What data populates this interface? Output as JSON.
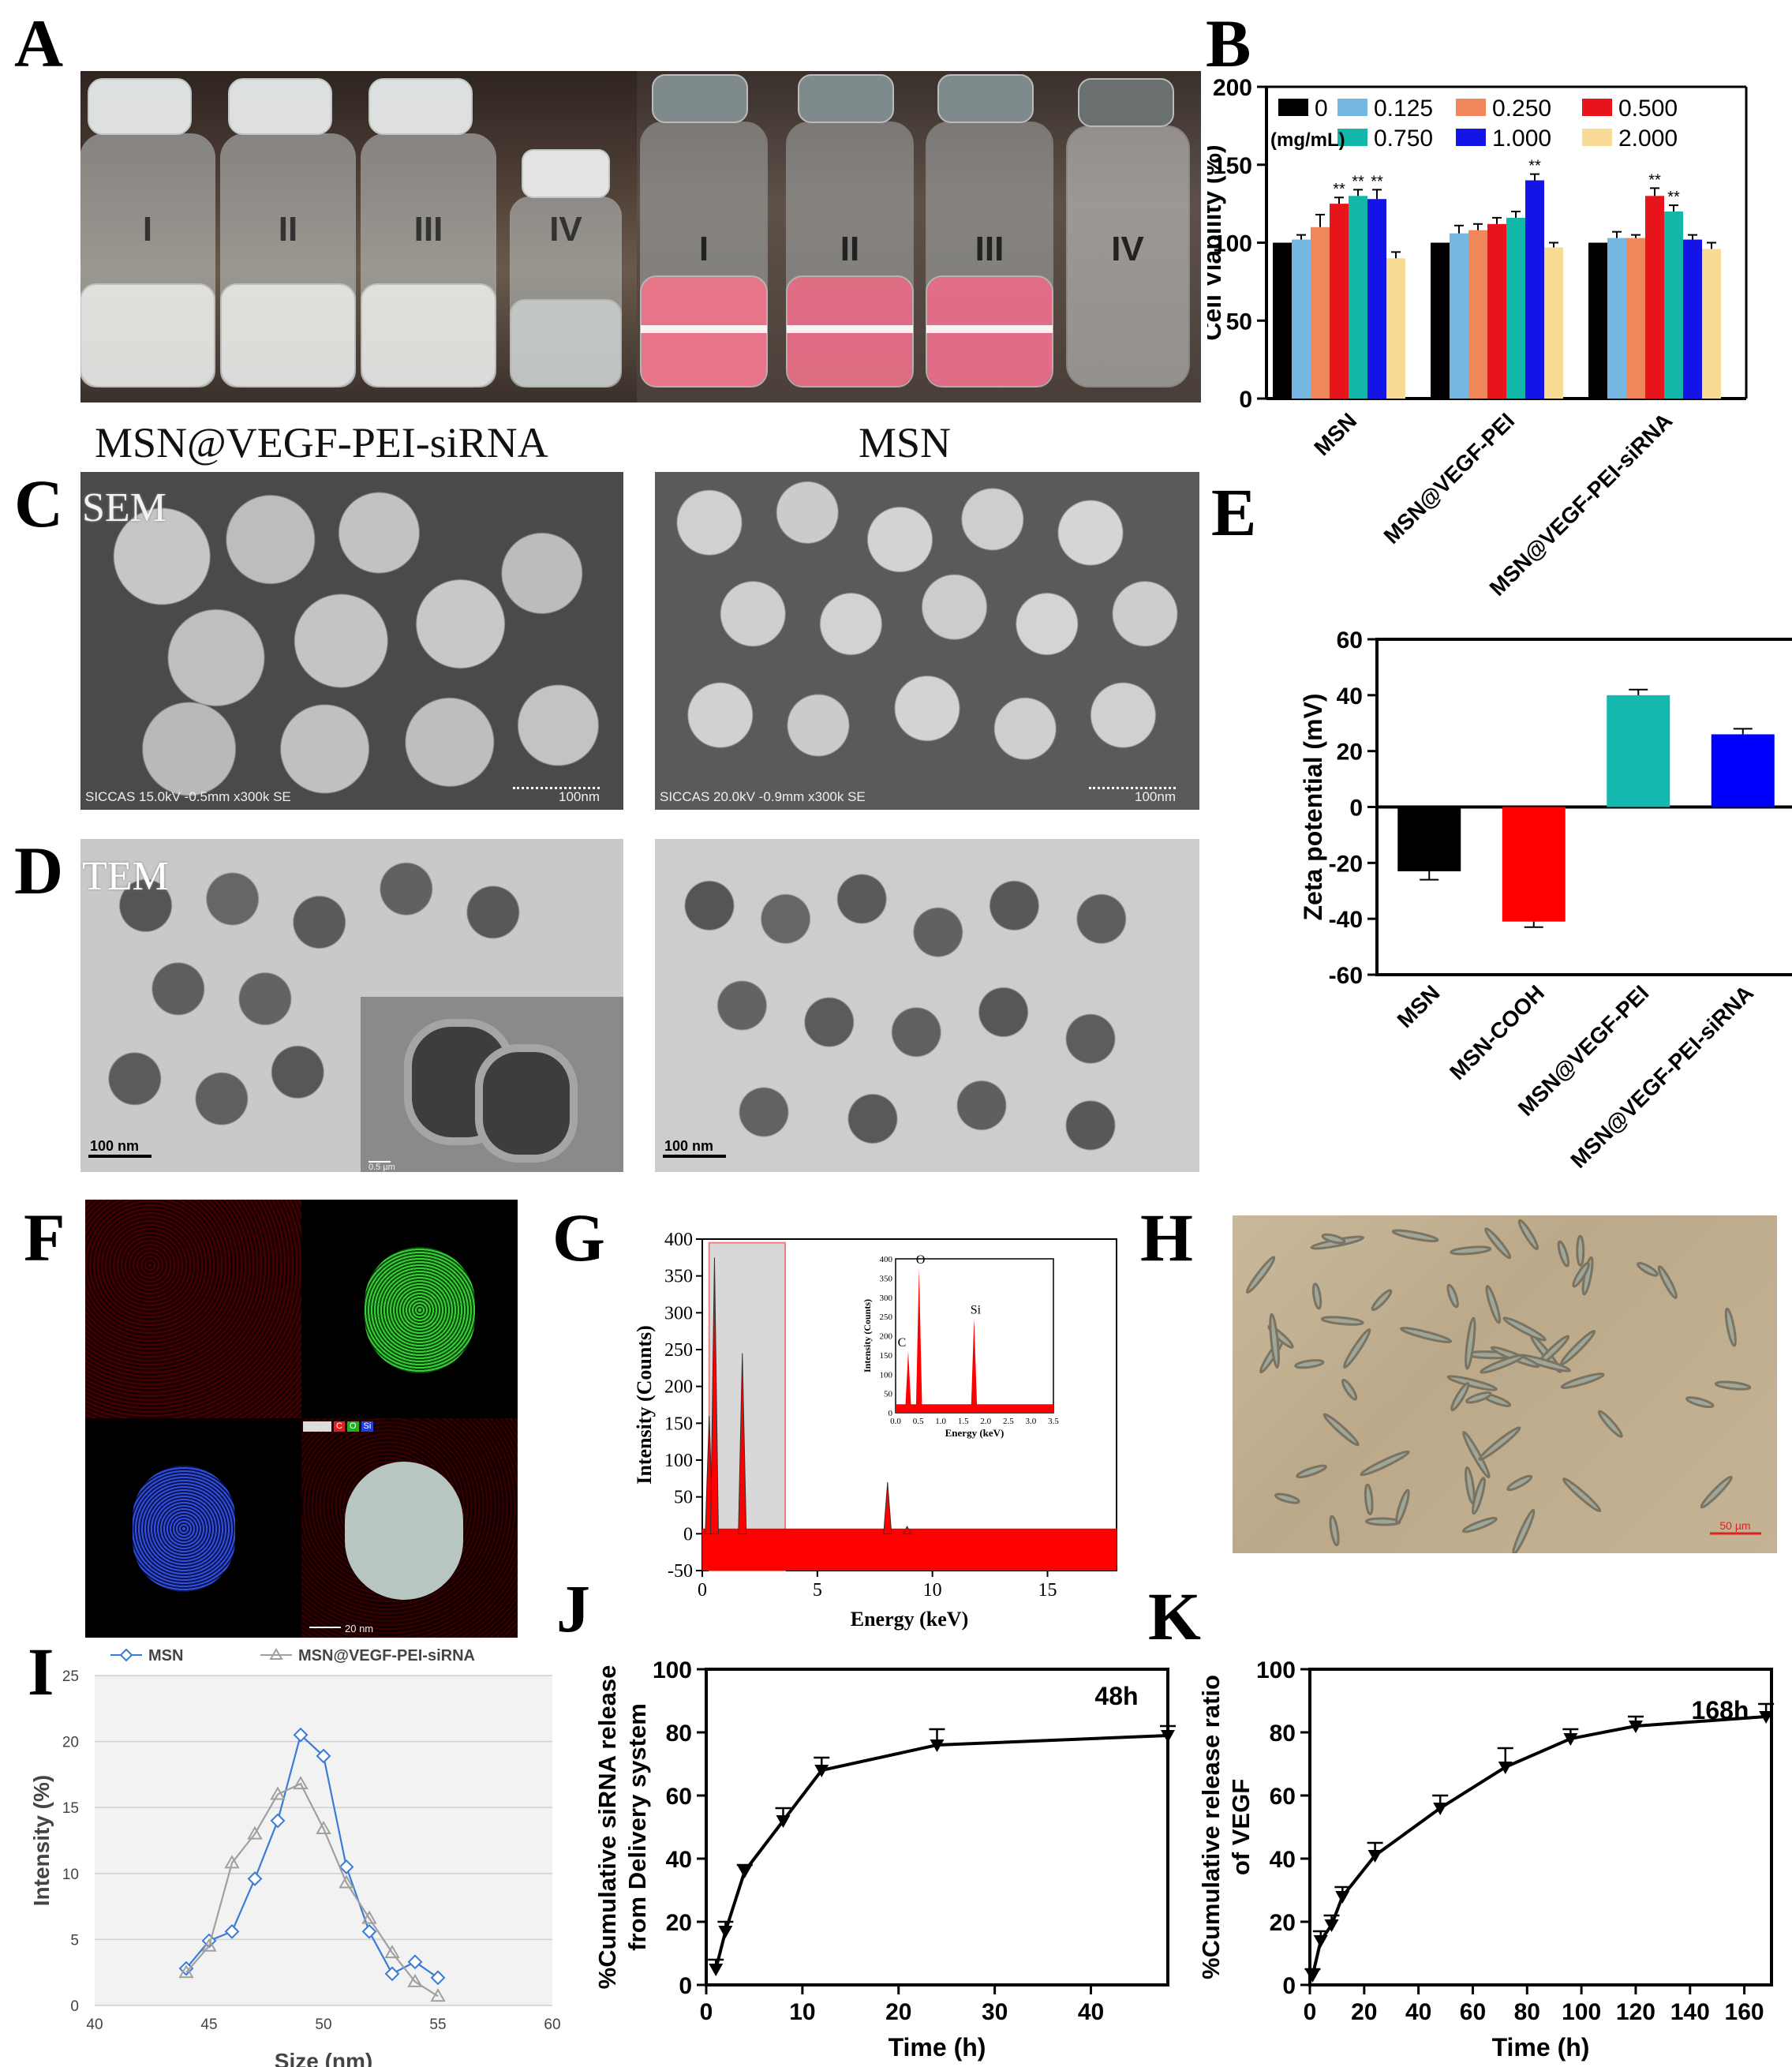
{
  "panel_labels": {
    "A": "A",
    "B": "B",
    "C": "C",
    "D": "D",
    "E": "E",
    "F": "F",
    "G": "G",
    "H": "H",
    "I": "I",
    "J": "J",
    "K": "K"
  },
  "panelA": {
    "vials_left": [
      "I",
      "II",
      "III",
      "IV"
    ],
    "vials_right": [
      "I",
      "II",
      "III",
      "IV"
    ]
  },
  "captions": {
    "left": "MSN@VEGF-PEI-siRNA",
    "right": "MSN"
  },
  "panelC": {
    "label": "SEM",
    "footer_left": "SICCAS 15.0kV -0.5mm x300k SE",
    "scale_left": "100nm",
    "footer_right": "SICCAS 20.0kV -0.9mm x300k SE",
    "scale_right": "100nm"
  },
  "panelD": {
    "label": "TEM",
    "scale_left": "100 nm",
    "inset_scale": "0.5 µm",
    "scale_right": "100 nm"
  },
  "panelF": {
    "legend": [
      "C",
      "O",
      "Si"
    ],
    "scale": "20 nm"
  },
  "panelH": {
    "scale": "50 µm"
  },
  "chart_data": [
    {
      "panel": "B",
      "type": "bar",
      "ylabel": "Cell Viability (%)",
      "ylim": [
        0,
        200
      ],
      "yticks": [
        "0",
        "50",
        "100",
        "150",
        "200"
      ],
      "categories": [
        "MSN",
        "MSN@VEGF-PEI",
        "MSN@VEGF-PEI-siRNA"
      ],
      "legend_unit": "(mg/mL)",
      "series": [
        {
          "name": "0",
          "color": "#000000",
          "values": [
            100,
            100,
            100
          ],
          "errors": [
            0,
            0,
            0
          ],
          "sig": [
            "",
            "",
            ""
          ]
        },
        {
          "name": "0.125",
          "color": "#74b7e0",
          "values": [
            102,
            106,
            103
          ],
          "errors": [
            3,
            5,
            4
          ],
          "sig": [
            "",
            "",
            ""
          ]
        },
        {
          "name": "0.250",
          "color": "#f0875a",
          "values": [
            110,
            108,
            103
          ],
          "errors": [
            8,
            4,
            2
          ],
          "sig": [
            "",
            "",
            ""
          ]
        },
        {
          "name": "0.500",
          "color": "#e8141b",
          "values": [
            125,
            112,
            130
          ],
          "errors": [
            4,
            4,
            5
          ],
          "sig": [
            "**",
            "",
            "**"
          ]
        },
        {
          "name": "0.750",
          "color": "#12b7a8",
          "values": [
            130,
            116,
            120
          ],
          "errors": [
            4,
            4,
            4
          ],
          "sig": [
            "**",
            "",
            "**"
          ]
        },
        {
          "name": "1.000",
          "color": "#1414e6",
          "values": [
            128,
            140,
            102
          ],
          "errors": [
            6,
            4,
            3
          ],
          "sig": [
            "**",
            "**",
            ""
          ]
        },
        {
          "name": "2.000",
          "color": "#f8dc95",
          "values": [
            90,
            97,
            96
          ],
          "errors": [
            4,
            3,
            4
          ],
          "sig": [
            "",
            "",
            ""
          ]
        }
      ]
    },
    {
      "panel": "E",
      "type": "bar",
      "ylabel": "Zeta potential (mV)",
      "ylim": [
        -60,
        60
      ],
      "yticks": [
        "-60",
        "-40",
        "-20",
        "0",
        "20",
        "40",
        "60"
      ],
      "categories": [
        "MSN",
        "MSN-COOH",
        "MSN@VEGF-PEI",
        "MSN@VEGF-PEI-siRNA"
      ],
      "values": [
        -23,
        -41,
        40,
        26
      ],
      "errors": [
        3,
        2,
        2,
        2
      ],
      "colors": [
        "#000000",
        "#ff0000",
        "#14b8ae",
        "#0000ff"
      ]
    },
    {
      "panel": "G",
      "type": "area",
      "xlabel": "Energy (keV)",
      "ylabel": "Intensity (Counts)",
      "xlim": [
        0,
        18
      ],
      "ylim": [
        -50,
        400
      ],
      "xticks": [
        "0",
        "5",
        "10",
        "15"
      ],
      "yticks": [
        "-50",
        "0",
        "50",
        "100",
        "150",
        "200",
        "250",
        "300",
        "350",
        "400"
      ],
      "peaks": [
        {
          "x": 0.3,
          "y": 160
        },
        {
          "x": 0.53,
          "y": 375
        },
        {
          "x": 1.74,
          "y": 245
        },
        {
          "x": 8.05,
          "y": 70
        },
        {
          "x": 8.9,
          "y": 10
        }
      ],
      "inset": {
        "xlabel": "Energy (keV)",
        "ylabel": "Intensity (Counts)",
        "xlim": [
          0,
          3.5
        ],
        "ylim": [
          0,
          400
        ],
        "xticks": [
          "0.0",
          "0.5",
          "1.0",
          "1.5",
          "2.0",
          "2.5",
          "3.0",
          "3.5"
        ],
        "yticks": [
          "0",
          "50",
          "100",
          "150",
          "200",
          "250",
          "300",
          "350",
          "400"
        ],
        "peak_labels": [
          {
            "label": "C",
            "x": 0.28,
            "y": 160
          },
          {
            "label": "O",
            "x": 0.52,
            "y": 375
          },
          {
            "label": "Si",
            "x": 1.74,
            "y": 245
          }
        ]
      }
    },
    {
      "panel": "I",
      "type": "line",
      "xlabel": "Size (nm)",
      "ylabel": "Intensity (%)",
      "xlim": [
        40,
        60
      ],
      "ylim": [
        0,
        25
      ],
      "xticks": [
        "40",
        "45",
        "50",
        "55",
        "60"
      ],
      "yticks": [
        "0",
        "5",
        "10",
        "15",
        "20",
        "25"
      ],
      "series": [
        {
          "name": "MSN",
          "color": "#3a7bd5",
          "x": [
            44,
            45,
            46,
            47,
            48,
            49,
            50,
            51,
            52,
            53,
            54,
            55
          ],
          "y": [
            2.8,
            4.9,
            5.6,
            9.6,
            14,
            20.5,
            18.9,
            10.5,
            5.6,
            2.4,
            3.3,
            2.1
          ]
        },
        {
          "name": "MSN@VEGF-PEI-siRNA",
          "color": "#a0a0a0",
          "x": [
            44,
            45,
            46,
            47,
            48,
            49,
            50,
            51,
            52,
            53,
            54,
            55
          ],
          "y": [
            2.5,
            4.5,
            10.8,
            13,
            16,
            16.8,
            13.4,
            9.3,
            6.6,
            4,
            1.8,
            0.7
          ]
        }
      ]
    },
    {
      "panel": "J",
      "type": "line",
      "xlabel": "Time (h)",
      "ylabel": "%Cumulative siRNA release from Delivery system",
      "ylabel_lines": [
        "%Cumulative siRNA release",
        "from Delivery system"
      ],
      "xlim": [
        0,
        48
      ],
      "ylim": [
        0,
        100
      ],
      "xticks": [
        "0",
        "10",
        "20",
        "30",
        "40"
      ],
      "yticks": [
        "0",
        "20",
        "40",
        "60",
        "80",
        "100"
      ],
      "annotation": "48h",
      "series": [
        {
          "name": "siRNA",
          "x": [
            1,
            2,
            4,
            8,
            12,
            24,
            48
          ],
          "y": [
            5,
            17,
            36,
            52,
            68,
            76,
            79
          ],
          "err": [
            3,
            3,
            2,
            4,
            4,
            5,
            3
          ]
        }
      ]
    },
    {
      "panel": "K",
      "type": "line",
      "xlabel": "Time (h)",
      "ylabel": "%Cumulative release ratio of VEGF",
      "ylabel_lines": [
        "%Cumulative release ratio",
        "of VEGF"
      ],
      "xlim": [
        0,
        170
      ],
      "ylim": [
        0,
        100
      ],
      "xticks": [
        "0",
        "20",
        "40",
        "60",
        "80",
        "100",
        "120",
        "140",
        "160"
      ],
      "yticks": [
        "0",
        "20",
        "40",
        "60",
        "80",
        "100"
      ],
      "annotation": "168h",
      "series": [
        {
          "name": "VEGF",
          "x": [
            1,
            4,
            8,
            12,
            24,
            48,
            72,
            96,
            120,
            168
          ],
          "y": [
            3,
            14,
            19,
            28,
            41,
            56,
            69,
            78,
            82,
            85
          ],
          "err": [
            2,
            3,
            3,
            3,
            4,
            4,
            6,
            3,
            3,
            4
          ]
        }
      ]
    }
  ]
}
